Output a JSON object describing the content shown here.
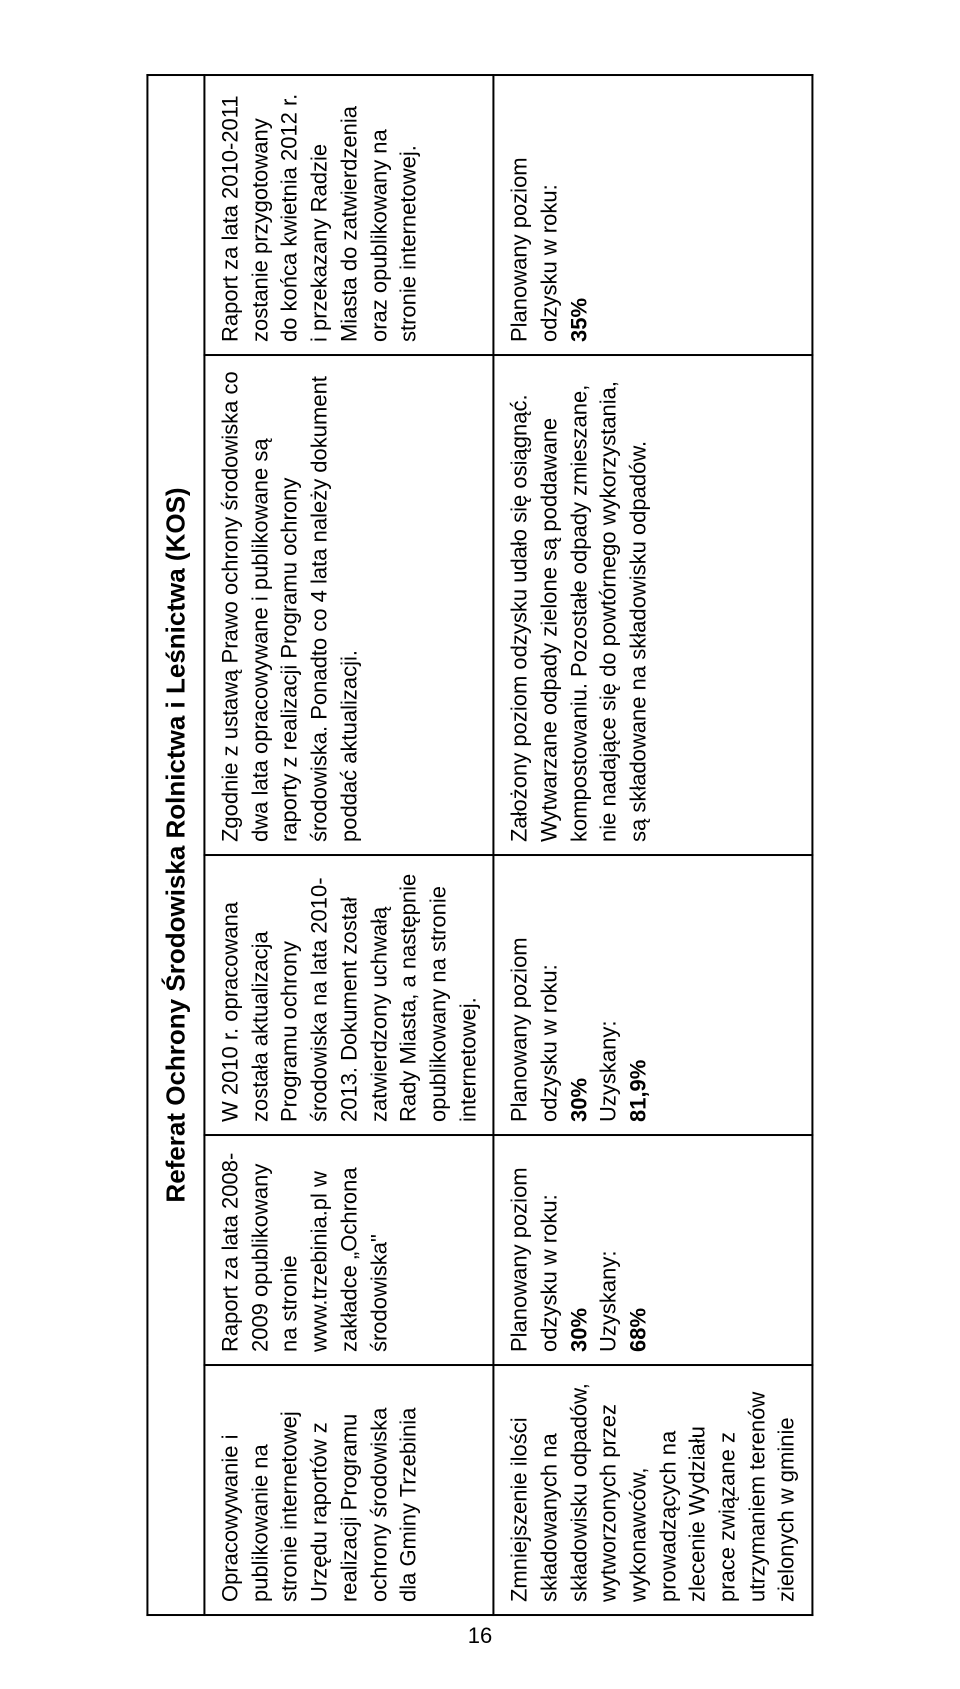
{
  "header": "Referat Ochrony Środowiska Rolnictwa i Leśnictwa (KOS)",
  "row1": {
    "c1": "Opracowywanie i publikowanie na stronie internetowej Urzędu raportów z realizacji Programu ochrony środowiska dla Gminy Trzebinia",
    "c2": "Raport za lata 2008-2009 opublikowany na stronie www.trzebinia.pl w zakładce „Ochrona środowiska\"",
    "c3": "W 2010 r. opracowana została aktualizacja Programu ochrony środowiska na lata 2010-2013. Dokument został zatwierdzony uchwałą Rady Miasta, a następnie opublikowany na stronie internetowej.",
    "c4": "Zgodnie z ustawą Prawo ochrony środowiska co dwa lata opracowywane i publikowane są raporty z realizacji Programu ochrony środowiska. Ponadto co 4 lata należy dokument poddać aktualizacji.",
    "c5": "Raport za lata 2010-2011 zostanie przygotowany do końca kwietnia 2012 r. i przekazany Radzie Miasta do zatwierdzenia oraz opublikowany na stronie internetowej."
  },
  "row2": {
    "c1": "Zmniejszenie ilości składowanych na składowisku odpadów, wytworzonych przez wykonawców, prowadzących na zlecenie Wydziału prace związane z utrzymaniem terenów zielonych w gminie",
    "c2_l1": "Planowany poziom odzysku w roku:",
    "c2_l2": "30%",
    "c2_l3": "Uzyskany:",
    "c2_l4": "68%",
    "c3_l1": "Planowany poziom odzysku w roku:",
    "c3_l2": "30%",
    "c3_l3": "Uzyskany:",
    "c3_l4": "81,9%",
    "c4": "Założony poziom odzysku udało się osiągnąć. Wytwarzane odpady zielone są poddawane kompostowaniu. Pozostałe odpady zmieszane, nie nadające się do powtórnego wykorzystania, są składowane na składowisku odpadów.",
    "c5_l1": "Planowany poziom odzysku w roku:",
    "c5_l2": "35%"
  },
  "pageNumber": "16"
}
